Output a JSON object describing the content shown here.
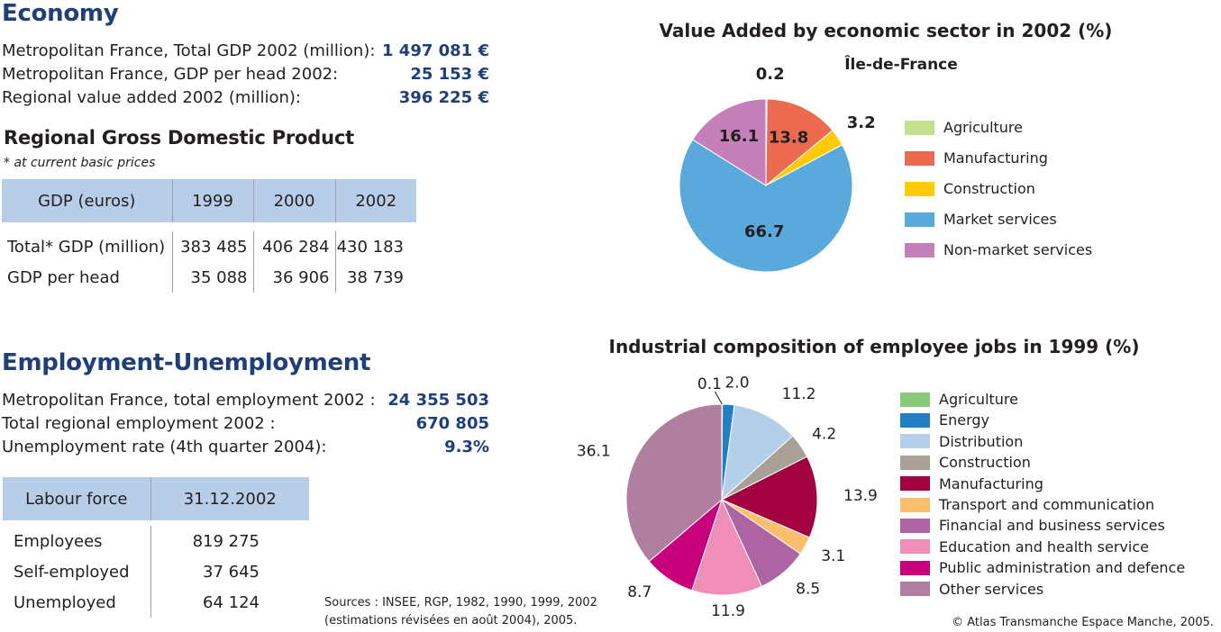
{
  "economy": {
    "heading": "Economy",
    "stats": [
      {
        "label": "Metropolitan France, Total GDP 2002 (million):",
        "value": "1 497 081 €"
      },
      {
        "label": "Metropolitan France, GDP per head 2002:",
        "value": "25 153 €"
      },
      {
        "label": "Regional value added 2002 (million):",
        "value": "396 225 €"
      }
    ]
  },
  "gdp_table": {
    "heading": "Regional Gross Domestic Product",
    "note": "* at current basic prices",
    "header": [
      "GDP (euros)",
      "1999",
      "2000",
      "2002"
    ],
    "rows": [
      [
        "Total* GDP (million)",
        "383 485",
        "406 284",
        "430 183"
      ],
      [
        "GDP per head",
        "35 088",
        "36 906",
        "38 739"
      ]
    ]
  },
  "employment": {
    "heading": "Employment-Unemployment",
    "stats": [
      {
        "label": "Metropolitan France, total employment 2002 :",
        "value": "24 355 503"
      },
      {
        "label": "Total regional employment 2002 :",
        "value": "670 805"
      },
      {
        "label": "Unemployment rate (4th quarter 2004):",
        "value": "9.3%"
      }
    ]
  },
  "labour_table": {
    "header": [
      "Labour force",
      "31.12.2002"
    ],
    "rows": [
      [
        "Employees",
        "819 275"
      ],
      [
        "Self-employed",
        "37 645"
      ],
      [
        "Unemployed",
        "64 124"
      ]
    ]
  },
  "sources": {
    "line1": "Sources : INSEE, RGP, 1982, 1990, 1999, 2002",
    "line2": "(estimations révisées en août 2004), 2005."
  },
  "copyright": "© Atlas Transmanche Espace Manche, 2005.",
  "chart_data": [
    {
      "type": "pie",
      "title": "Value Added by economic sector in 2002 (%)",
      "subtitle": "Île-de-France",
      "categories": [
        "Agriculture",
        "Manufacturing",
        "Construction",
        "Market services",
        "Non-market services"
      ],
      "values": [
        0.2,
        13.8,
        3.2,
        66.7,
        16.1
      ],
      "colors": [
        "#c5df8f",
        "#eb6a50",
        "#ffcb05",
        "#5aa9dd",
        "#c580b9"
      ],
      "legend": "right"
    },
    {
      "type": "pie",
      "title": "Industrial composition of employee jobs in 1999 (%)",
      "categories": [
        "Agriculture",
        "Energy",
        "Distribution",
        "Construction",
        "Manufacturing",
        "Transport and communication",
        "Financial and business services",
        "Education and health service",
        "Public administration and defence",
        "Other services"
      ],
      "values": [
        0.1,
        2.0,
        11.2,
        4.2,
        13.9,
        3.1,
        8.5,
        11.9,
        8.7,
        36.1
      ],
      "colors": [
        "#8ac87a",
        "#2280c2",
        "#b3cfe9",
        "#a9a195",
        "#a3003f",
        "#fbbf6e",
        "#ad64a3",
        "#ef8fb8",
        "#c8007b",
        "#b07e9f"
      ],
      "legend": "right"
    }
  ]
}
